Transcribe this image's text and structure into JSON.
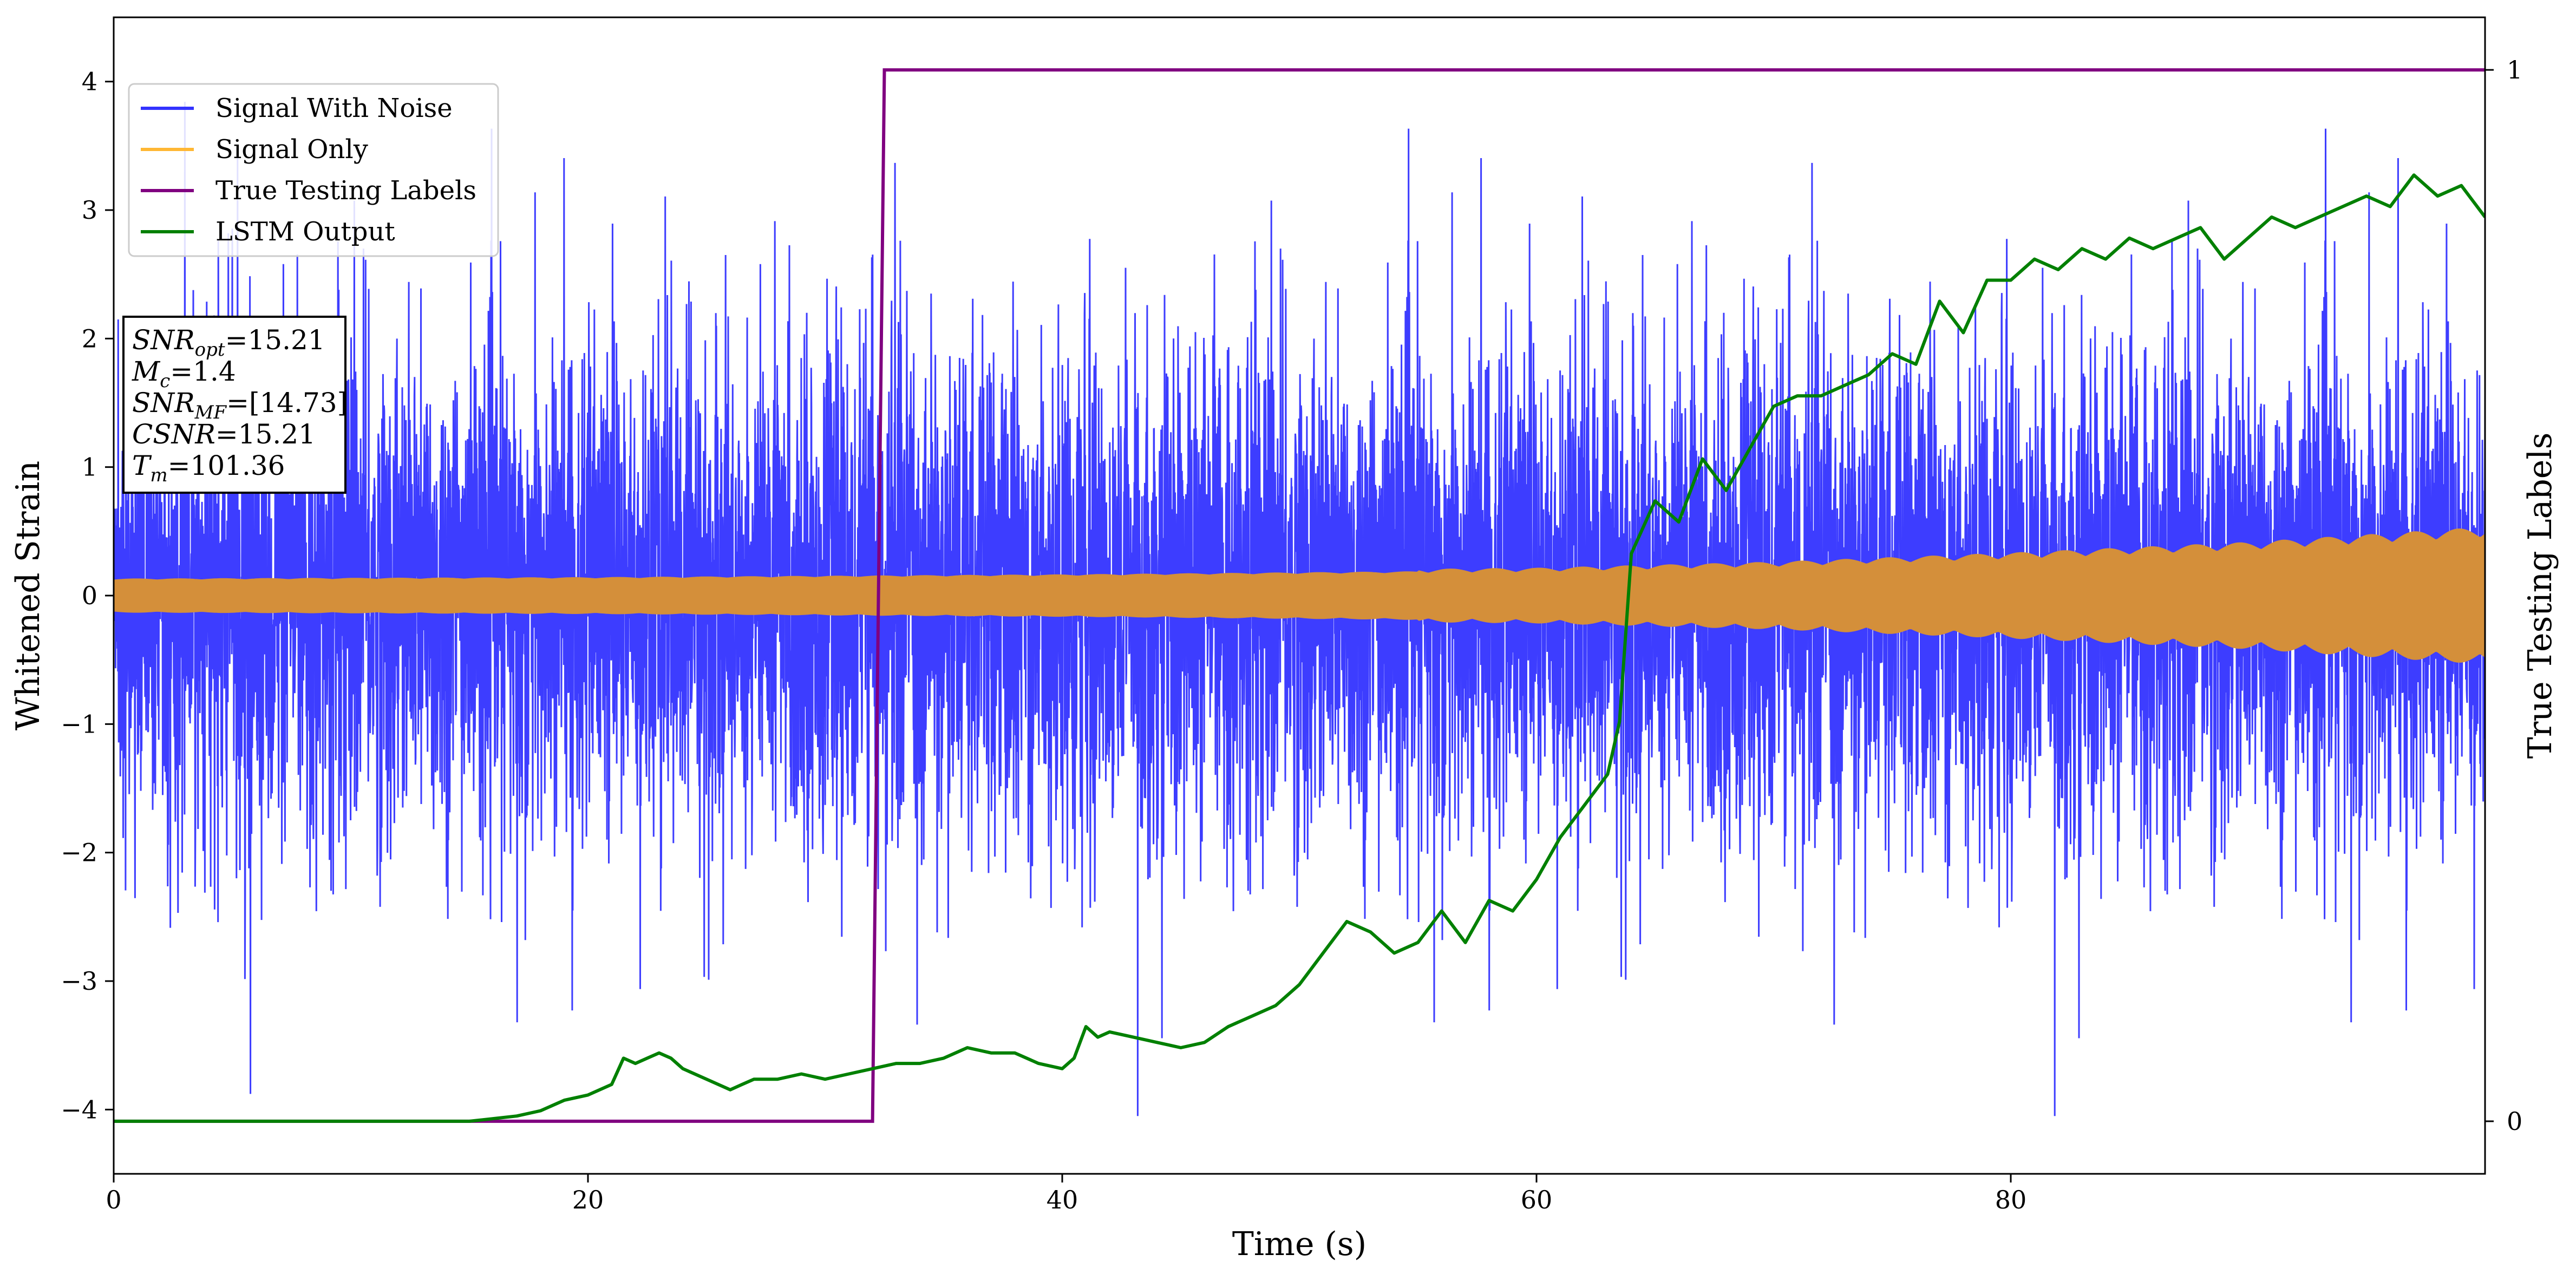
{
  "chart_data": {
    "type": "line",
    "xlabel": "Time (s)",
    "ylabel": "Whitened Strain",
    "ylabel_right": "True Testing Labels",
    "xlim": [
      0,
      100
    ],
    "ylim": [
      -4.5,
      4.5
    ],
    "ylim_right": [
      -0.05,
      1.05
    ],
    "x_ticks": [
      0,
      20,
      40,
      60,
      80
    ],
    "x_tick_labels": [
      "0",
      "20",
      "40",
      "60",
      "80"
    ],
    "y_ticks": [
      -4,
      -3,
      -2,
      -1,
      0,
      1,
      2,
      3,
      4
    ],
    "y_tick_labels": [
      "−4",
      "−3",
      "−2",
      "−1",
      "0",
      "1",
      "2",
      "3",
      "4"
    ],
    "y_ticks_right": [
      0,
      1
    ],
    "y_tick_labels_right": [
      "0",
      "1"
    ],
    "grid": false,
    "legend_position": "top-left",
    "legend": [
      {
        "name": "Signal With Noise",
        "color": "#3333ff"
      },
      {
        "name": "Signal Only",
        "color": "#ffb733"
      },
      {
        "name": "True Testing Labels",
        "color": "#800080"
      },
      {
        "name": "LSTM Output",
        "color": "#008000"
      }
    ],
    "series": [
      {
        "name": "Signal With Noise",
        "color": "#3333ff",
        "axis": "left",
        "description_envelope": {
          "typical_amplitude": 1.5,
          "max_peak": 4.0,
          "min_peak": -4.0
        }
      },
      {
        "name": "Signal Only",
        "color": "#d48f3a",
        "axis": "left",
        "envelope_x": [
          0,
          20,
          40,
          60,
          70,
          80,
          90,
          100
        ],
        "envelope_amplitude": [
          0.12,
          0.13,
          0.15,
          0.18,
          0.22,
          0.28,
          0.35,
          0.45
        ]
      },
      {
        "name": "True Testing Labels",
        "color": "#800080",
        "axis": "right",
        "x": [
          0,
          32.0,
          32.5,
          100
        ],
        "y": [
          0,
          0,
          1,
          1
        ]
      },
      {
        "name": "LSTM Output",
        "color": "#008000",
        "axis": "right",
        "x": [
          0,
          15,
          17,
          18,
          19,
          20,
          21,
          21.5,
          22,
          22.5,
          23,
          23.5,
          24,
          25,
          26,
          26.5,
          27,
          28,
          29,
          30,
          31,
          32,
          33,
          34,
          35,
          36,
          37,
          38,
          39,
          40,
          40.5,
          41,
          41.5,
          42,
          43,
          44,
          45,
          46,
          47,
          48,
          49,
          50,
          51,
          52,
          53,
          54,
          55,
          56,
          57,
          58,
          59,
          60,
          61,
          62,
          63,
          63.5,
          64,
          65,
          66,
          67,
          68,
          69,
          70,
          71,
          72,
          73,
          74,
          75,
          76,
          77,
          78,
          79,
          80,
          81,
          82,
          83,
          84,
          85,
          86,
          87,
          88,
          89,
          90,
          91,
          92,
          93,
          94,
          95,
          96,
          97,
          98,
          99,
          100
        ],
        "y": [
          0,
          0,
          0.005,
          0.01,
          0.02,
          0.025,
          0.035,
          0.06,
          0.055,
          0.06,
          0.065,
          0.06,
          0.05,
          0.04,
          0.03,
          0.035,
          0.04,
          0.04,
          0.045,
          0.04,
          0.045,
          0.05,
          0.055,
          0.055,
          0.06,
          0.07,
          0.065,
          0.065,
          0.055,
          0.05,
          0.06,
          0.09,
          0.08,
          0.085,
          0.08,
          0.075,
          0.07,
          0.075,
          0.09,
          0.1,
          0.11,
          0.13,
          0.16,
          0.19,
          0.18,
          0.16,
          0.17,
          0.2,
          0.17,
          0.21,
          0.2,
          0.23,
          0.27,
          0.3,
          0.33,
          0.38,
          0.54,
          0.59,
          0.57,
          0.63,
          0.6,
          0.64,
          0.68,
          0.69,
          0.69,
          0.7,
          0.71,
          0.73,
          0.72,
          0.78,
          0.75,
          0.8,
          0.8,
          0.82,
          0.81,
          0.83,
          0.82,
          0.84,
          0.83,
          0.84,
          0.85,
          0.82,
          0.84,
          0.86,
          0.85,
          0.86,
          0.87,
          0.88,
          0.87,
          0.9,
          0.88,
          0.89,
          0.86
        ]
      }
    ],
    "annotation_box": {
      "position": "left",
      "lines": [
        {
          "base": "SNR",
          "sub": "opt",
          "value": "=15.21"
        },
        {
          "base": "M",
          "sub": "c",
          "value": "=1.4"
        },
        {
          "base": "SNR",
          "sub": "MF",
          "value": "=[14.73]"
        },
        {
          "base": "CSNR",
          "sub": "",
          "value": "=15.21"
        },
        {
          "base": "T",
          "sub": "m",
          "value": "=101.36"
        }
      ]
    }
  }
}
